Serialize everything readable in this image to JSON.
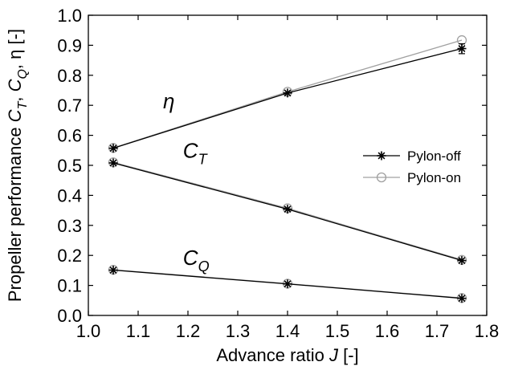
{
  "chart_data": {
    "type": "line",
    "xlabel": {
      "text": "Advance ratio ",
      "italic": "J",
      "suffix": " [-]"
    },
    "ylabel": {
      "prefix": "Propeller performance ",
      "ct_main": "C",
      "ct_sub": "T",
      "sep1": ", ",
      "cq_main": "C",
      "cq_sub": "Q",
      "sep2": ", ",
      "eta": "η",
      "suffix": " [-]"
    },
    "xlim": [
      1.0,
      1.8
    ],
    "ylim": [
      0.0,
      1.0
    ],
    "x_ticks": [
      "1.0",
      "1.1",
      "1.2",
      "1.3",
      "1.4",
      "1.5",
      "1.6",
      "1.7",
      "1.8"
    ],
    "y_ticks": [
      "0.0",
      "0.1",
      "0.2",
      "0.3",
      "0.4",
      "0.5",
      "0.6",
      "0.7",
      "0.8",
      "0.9",
      "1.0"
    ],
    "grid": false,
    "legend_position": "right",
    "series": [
      {
        "name": "Pylon-off",
        "color": "#000000",
        "marker": "asterisk",
        "curves": {
          "eta": {
            "x": [
              1.05,
              1.4,
              1.75
            ],
            "y": [
              0.557,
              0.741,
              0.889
            ]
          },
          "ct": {
            "x": [
              1.05,
              1.4,
              1.75
            ],
            "y": [
              0.508,
              0.354,
              0.183
            ]
          },
          "cq": {
            "x": [
              1.05,
              1.4,
              1.75
            ],
            "y": [
              0.151,
              0.105,
              0.057
            ]
          }
        },
        "error_bar": {
          "curve": "eta",
          "x": 1.75,
          "low": 0.872,
          "high": 0.905
        }
      },
      {
        "name": "Pylon-on",
        "color": "#a0a0a0",
        "marker": "circle",
        "curves": {
          "eta": {
            "x": [
              1.05,
              1.4,
              1.75
            ],
            "y": [
              0.558,
              0.745,
              0.917
            ]
          },
          "ct": {
            "x": [
              1.05,
              1.4,
              1.75
            ],
            "y": [
              0.51,
              0.357,
              0.185
            ]
          },
          "cq": {
            "x": [
              1.05,
              1.4,
              1.75
            ],
            "y": [
              0.152,
              0.106,
              0.058
            ]
          }
        }
      }
    ],
    "annotations": [
      {
        "id": "eta",
        "main": "η",
        "sub": "",
        "x": 1.15,
        "y": 0.69
      },
      {
        "id": "ct",
        "main": "C",
        "sub": "T",
        "x": 1.19,
        "y": 0.525
      },
      {
        "id": "cq",
        "main": "C",
        "sub": "Q",
        "x": 1.19,
        "y": 0.168
      }
    ]
  }
}
